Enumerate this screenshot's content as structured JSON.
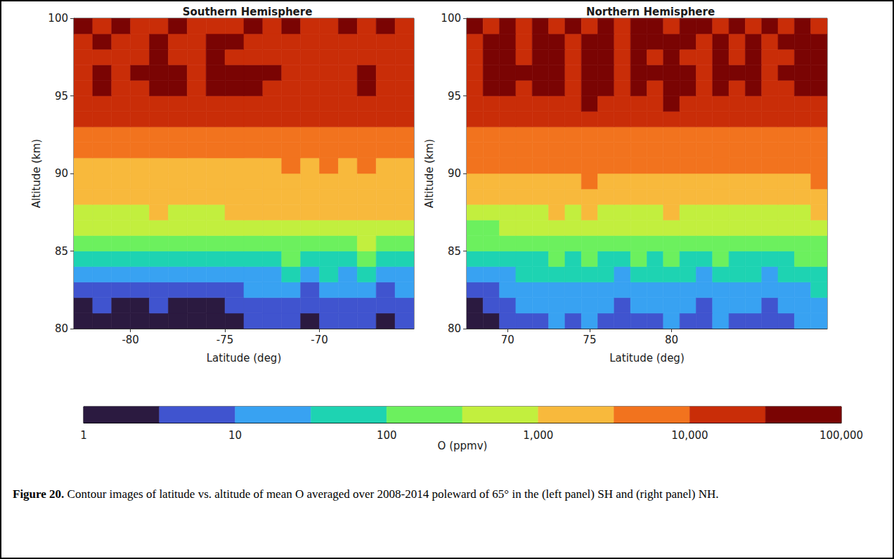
{
  "chart_data": [
    {
      "type": "contour",
      "title": "Southern Hemisphere",
      "xlabel": "Latitude (deg)",
      "ylabel": "Altitude (km)",
      "xlim": [
        -83,
        -65
      ],
      "ylim": [
        80,
        100
      ],
      "xticks": [
        -80,
        -75,
        -70
      ],
      "yticks": [
        80,
        85,
        90,
        95,
        100
      ],
      "x": [
        -82.5,
        -81.5,
        -80.5,
        -79.5,
        -78.5,
        -77.5,
        -76.5,
        -75.5,
        -74.5,
        -73.5,
        -72.5,
        -71.5,
        -70.5,
        -69.5,
        -68.5,
        -67.5,
        -66.5,
        -65.5
      ],
      "y": [
        80.5,
        81.5,
        82.5,
        83.5,
        84.5,
        85.5,
        86.5,
        87.5,
        88.5,
        89.5,
        90.5,
        91.5,
        92.5,
        93.5,
        94.5,
        95.5,
        96.5,
        97.5,
        98.5,
        99.5
      ],
      "cells": [
        [
          2,
          2,
          1.5,
          2,
          3,
          2,
          2,
          1.8,
          2.5,
          5,
          4,
          6,
          3,
          5,
          4,
          6,
          3,
          4
        ],
        [
          3,
          4,
          2.5,
          3,
          4,
          3,
          2.8,
          3,
          4,
          7,
          6,
          8,
          5,
          7,
          6,
          8,
          5,
          6
        ],
        [
          6,
          8,
          5,
          7,
          9,
          6,
          5,
          6,
          8,
          12,
          10,
          15,
          9,
          14,
          11,
          16,
          9,
          12
        ],
        [
          14,
          18,
          12,
          16,
          20,
          15,
          12,
          14,
          18,
          30,
          25,
          40,
          22,
          35,
          28,
          45,
          24,
          30
        ],
        [
          40,
          45,
          35,
          42,
          55,
          40,
          35,
          40,
          50,
          80,
          70,
          110,
          60,
          95,
          75,
          120,
          65,
          85
        ],
        [
          120,
          130,
          110,
          125,
          150,
          120,
          110,
          120,
          140,
          220,
          200,
          300,
          180,
          260,
          210,
          330,
          190,
          240
        ],
        [
          350,
          380,
          320,
          360,
          420,
          350,
          320,
          350,
          400,
          600,
          550,
          800,
          500,
          700,
          580,
          850,
          520,
          650
        ],
        [
          900,
          950,
          850,
          920,
          1050,
          900,
          850,
          900,
          1000,
          1400,
          1300,
          1700,
          1200,
          1600,
          1350,
          1800,
          1250,
          1500
        ],
        [
          1600,
          1650,
          1550,
          1600,
          1750,
          1600,
          1550,
          1600,
          1700,
          2000,
          1900,
          2200,
          1800,
          2100,
          1900,
          2300,
          1850,
          2000
        ],
        [
          2200,
          2300,
          2100,
          2200,
          2400,
          2200,
          2100,
          2200,
          2300,
          2500,
          2400,
          2700,
          2300,
          2600,
          2400,
          2800,
          2350,
          2500
        ],
        [
          2700,
          2800,
          2600,
          2700,
          2900,
          2700,
          2600,
          2700,
          2800,
          3000,
          2900,
          3300,
          2800,
          3200,
          2900,
          3400,
          2900,
          3100
        ],
        [
          3400,
          3600,
          3300,
          3500,
          3700,
          3400,
          3300,
          3500,
          3600,
          4200,
          4000,
          4800,
          3900,
          4500,
          4100,
          5000,
          4000,
          4400
        ],
        [
          6000,
          6500,
          5800,
          6200,
          7000,
          6000,
          5800,
          6200,
          6500,
          8000,
          7500,
          9000,
          7200,
          8500,
          7800,
          9500,
          7500,
          8200
        ],
        [
          11000,
          12000,
          10500,
          11500,
          13000,
          11000,
          10500,
          11500,
          12000,
          14000,
          13500,
          15000,
          13000,
          14500,
          13500,
          16000,
          13000,
          14000
        ],
        [
          20000,
          24000,
          19000,
          22000,
          30000,
          25000,
          21000,
          26000,
          28000,
          30000,
          27000,
          25000,
          23000,
          26000,
          24000,
          28000,
          22000,
          24000
        ],
        [
          26000,
          34000,
          24000,
          30000,
          36000,
          33000,
          28000,
          35000,
          34000,
          33000,
          31000,
          29000,
          27000,
          30000,
          28000,
          32000,
          26000,
          28000
        ],
        [
          28000,
          35000,
          26000,
          33000,
          38000,
          34000,
          30000,
          36000,
          35000,
          34000,
          32000,
          30000,
          28000,
          31000,
          29000,
          33000,
          27000,
          29000
        ],
        [
          24000,
          30000,
          22000,
          28000,
          33000,
          29000,
          26000,
          32000,
          30000,
          28000,
          26000,
          24000,
          22000,
          25000,
          23000,
          27000,
          21000,
          23000
        ],
        [
          26000,
          32000,
          24000,
          30000,
          35000,
          31000,
          28000,
          34000,
          32000,
          30000,
          27000,
          25000,
          23000,
          26000,
          24000,
          29000,
          22000,
          25000
        ],
        [
          33000,
          28000,
          35000,
          30000,
          26000,
          34000,
          31000,
          25000,
          29000,
          36000,
          27000,
          33000,
          24000,
          30000,
          34000,
          26000,
          32000,
          28000
        ]
      ]
    },
    {
      "type": "contour",
      "title": "Northern Hemisphere",
      "xlabel": "Latitude (deg)",
      "ylabel": "Altitude (km)",
      "xlim": [
        67.5,
        89.5
      ],
      "ylim": [
        80,
        100
      ],
      "xticks": [
        70,
        75,
        80
      ],
      "yticks": [
        80,
        85,
        90,
        95,
        100
      ],
      "x": [
        68,
        69,
        70,
        71,
        72,
        73,
        74,
        75,
        76,
        77,
        78,
        79,
        80,
        81,
        82,
        83,
        84,
        85,
        86,
        87,
        88,
        89
      ],
      "y": [
        80.5,
        81.5,
        82.5,
        83.5,
        84.5,
        85.5,
        86.5,
        87.5,
        88.5,
        89.5,
        90.5,
        91.5,
        92.5,
        93.5,
        94.5,
        95.5,
        96.5,
        97.5,
        98.5,
        99.5
      ],
      "cells": [
        [
          2,
          3,
          5,
          8,
          6,
          10,
          7,
          12,
          8,
          6,
          9,
          7,
          11,
          8,
          6,
          10,
          7,
          9,
          5,
          8,
          12,
          15
        ],
        [
          3,
          5,
          8,
          12,
          10,
          15,
          11,
          18,
          12,
          9,
          14,
          10,
          16,
          12,
          9,
          15,
          11,
          14,
          8,
          12,
          18,
          22
        ],
        [
          6,
          9,
          14,
          20,
          16,
          25,
          18,
          28,
          20,
          15,
          22,
          17,
          26,
          19,
          15,
          24,
          18,
          22,
          14,
          19,
          28,
          34
        ],
        [
          15,
          22,
          30,
          40,
          32,
          50,
          36,
          55,
          40,
          30,
          45,
          34,
          52,
          38,
          30,
          48,
          36,
          44,
          28,
          38,
          55,
          60
        ],
        [
          40,
          55,
          70,
          90,
          75,
          110,
          80,
          120,
          90,
          70,
          100,
          78,
          115,
          85,
          70,
          105,
          80,
          98,
          65,
          85,
          110,
          120
        ],
        [
          100,
          130,
          160,
          200,
          170,
          240,
          180,
          260,
          200,
          160,
          220,
          175,
          250,
          190,
          160,
          230,
          180,
          215,
          150,
          190,
          240,
          260
        ],
        [
          250,
          300,
          350,
          420,
          370,
          500,
          390,
          540,
          420,
          350,
          460,
          380,
          520,
          400,
          350,
          480,
          390,
          450,
          330,
          400,
          500,
          540
        ],
        [
          550,
          650,
          750,
          850,
          780,
          1000,
          800,
          1050,
          850,
          750,
          920,
          780,
          1000,
          820,
          740,
          950,
          800,
          900,
          700,
          820,
          980,
          1050
        ],
        [
          1200,
          1400,
          1500,
          1700,
          1600,
          1900,
          1650,
          2000,
          1700,
          1550,
          1800,
          1600,
          1950,
          1650,
          1550,
          1850,
          1650,
          1750,
          1500,
          1650,
          1900,
          2000
        ],
        [
          2300,
          2500,
          2700,
          2900,
          2800,
          3100,
          2850,
          3200,
          2900,
          2700,
          3000,
          2800,
          3150,
          2850,
          2700,
          3050,
          2850,
          2950,
          2650,
          2850,
          3100,
          3200
        ],
        [
          3500,
          3800,
          4000,
          4300,
          4100,
          4600,
          4200,
          4800,
          4300,
          4000,
          4500,
          4100,
          4700,
          4200,
          4000,
          4600,
          4200,
          4400,
          3900,
          4200,
          4600,
          4800
        ],
        [
          5000,
          5500,
          5800,
          6200,
          6000,
          6600,
          6100,
          6900,
          6200,
          5800,
          6500,
          6000,
          6800,
          6100,
          5800,
          6600,
          6100,
          6300,
          5700,
          6100,
          6600,
          6900
        ],
        [
          7500,
          8000,
          8500,
          9000,
          8700,
          9500,
          8800,
          9800,
          9000,
          8500,
          9300,
          8700,
          9700,
          8900,
          8500,
          9400,
          8800,
          9200,
          8300,
          8800,
          9500,
          9800
        ],
        [
          12000,
          13000,
          14000,
          15000,
          14500,
          16000,
          14800,
          16500,
          15000,
          14000,
          15500,
          14500,
          16200,
          14800,
          14000,
          15800,
          14600,
          15300,
          13800,
          14600,
          15900,
          16500
        ],
        [
          20000,
          24000,
          27000,
          29000,
          26000,
          30000,
          25000,
          33000,
          28000,
          24000,
          31000,
          26000,
          34000,
          27000,
          23000,
          30000,
          25000,
          29000,
          22000,
          26000,
          28000,
          30000
        ],
        [
          26000,
          33000,
          35000,
          30000,
          34000,
          37000,
          29000,
          38000,
          33000,
          28000,
          36000,
          31000,
          39000,
          32000,
          27000,
          35000,
          30000,
          34000,
          26000,
          31000,
          33000,
          35000
        ],
        [
          28000,
          35000,
          38000,
          32000,
          36000,
          40000,
          31000,
          41000,
          35000,
          30000,
          38000,
          33000,
          42000,
          34000,
          29000,
          37000,
          32000,
          36000,
          28000,
          33000,
          35000,
          37000
        ],
        [
          25000,
          32000,
          35000,
          30000,
          33000,
          37000,
          29000,
          38000,
          32000,
          28000,
          35000,
          30000,
          39000,
          31000,
          27000,
          34000,
          29000,
          33000,
          26000,
          30000,
          32000,
          34000
        ],
        [
          27000,
          34000,
          37000,
          31000,
          35000,
          39000,
          30000,
          40000,
          34000,
          29000,
          37000,
          32000,
          41000,
          33000,
          28000,
          36000,
          31000,
          35000,
          27000,
          32000,
          34000,
          36000
        ],
        [
          34000,
          28000,
          36000,
          30000,
          38000,
          27000,
          35000,
          31000,
          39000,
          26000,
          33000,
          37000,
          29000,
          34000,
          38000,
          28000,
          36000,
          30000,
          35000,
          27000,
          33000,
          31000
        ]
      ]
    }
  ],
  "colorbar": {
    "label": "O (ppmv)",
    "log": true,
    "range": [
      1,
      100000
    ],
    "ticks": [
      1,
      10,
      100,
      1000,
      10000,
      100000
    ],
    "levels": [
      1,
      3.16,
      10,
      31.6,
      100,
      316,
      1000,
      3160,
      10000,
      31600,
      100000
    ],
    "colors": [
      "#2b1a40",
      "#4054cf",
      "#38a2f2",
      "#1ed3b2",
      "#6cf05e",
      "#c2ef3e",
      "#f8b93c",
      "#f2731e",
      "#c92d08",
      "#7a0403"
    ]
  },
  "caption": {
    "label": "Figure 20.",
    "text": "Contour images of latitude vs. altitude of mean O averaged over 2008-2014 poleward of 65° in the (left panel) SH and (right panel) NH."
  }
}
